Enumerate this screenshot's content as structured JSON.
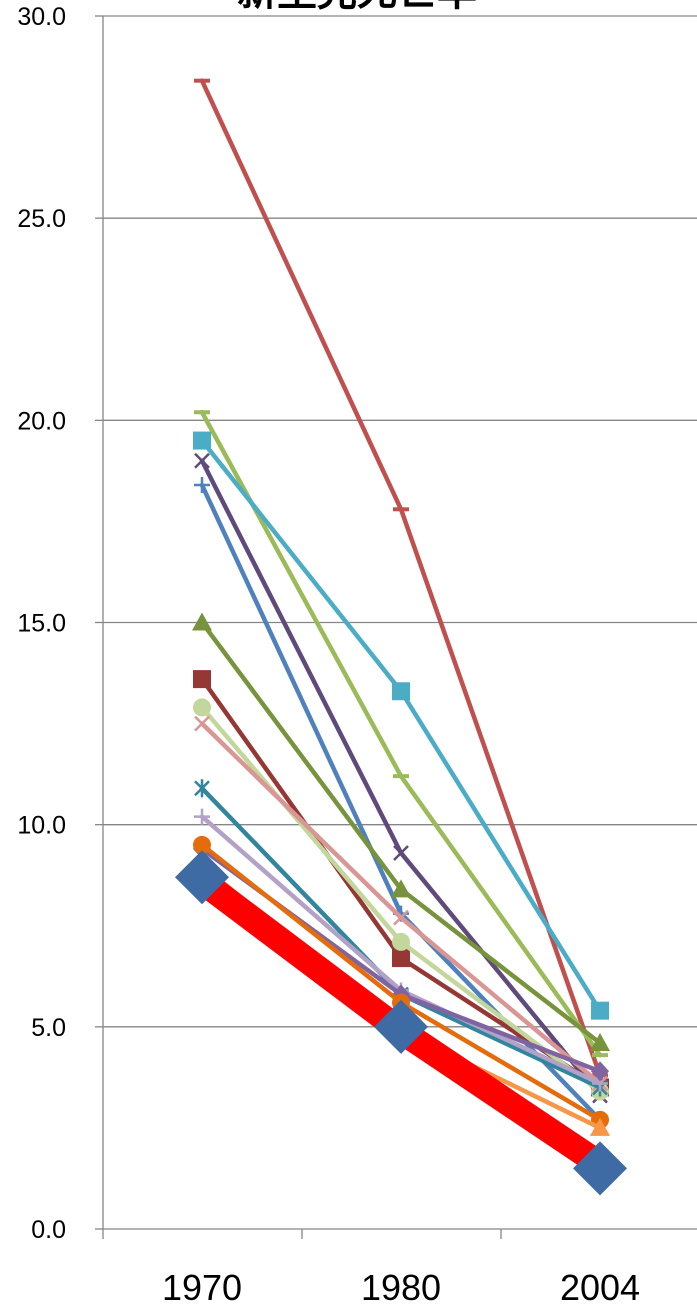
{
  "chart_data": {
    "type": "line",
    "title": "新生児死亡率",
    "xlabel": "",
    "ylabel": "",
    "categories": [
      "1970",
      "1980",
      "2004"
    ],
    "ylim": [
      0,
      30
    ],
    "yticks": [
      "0.0",
      "5.0",
      "10.0",
      "15.0",
      "20.0",
      "25.0",
      "30.0"
    ],
    "grid": true,
    "legend": "none",
    "series": [
      {
        "values": [
          28.4,
          17.8,
          3.8
        ],
        "color": "#C0504D",
        "marker": "dash"
      },
      {
        "values": [
          20.2,
          11.2,
          4.3
        ],
        "color": "#9BBB59",
        "marker": "dash"
      },
      {
        "values": [
          19.5,
          13.3,
          5.4
        ],
        "color": "#4BACC6",
        "marker": "square"
      },
      {
        "values": [
          19.0,
          9.3,
          3.3
        ],
        "color": "#604A7B",
        "marker": "x"
      },
      {
        "values": [
          18.4,
          7.8,
          2.7
        ],
        "color": "#4F81BD",
        "marker": "plus"
      },
      {
        "values": [
          15.0,
          8.4,
          4.6
        ],
        "color": "#77933C",
        "marker": "triangle"
      },
      {
        "values": [
          13.6,
          6.7,
          3.5
        ],
        "color": "#953735",
        "marker": "square"
      },
      {
        "values": [
          12.9,
          7.1,
          3.4
        ],
        "color": "#C3D69B",
        "marker": "circle"
      },
      {
        "values": [
          12.5,
          7.7,
          3.6
        ],
        "color": "#D99694",
        "marker": "x"
      },
      {
        "values": [
          10.9,
          5.8,
          3.5
        ],
        "color": "#31859C",
        "marker": "asterisk"
      },
      {
        "values": [
          10.2,
          5.9,
          3.6
        ],
        "color": "#B3A2C7",
        "marker": "plus"
      },
      {
        "values": [
          9.4,
          5.8,
          3.9
        ],
        "color": "#8064A2",
        "marker": "diamond"
      },
      {
        "values": [
          9.5,
          5.6,
          2.7
        ],
        "color": "#E46C0A",
        "marker": "circle"
      },
      {
        "values": [
          9.0,
          4.9,
          2.5
        ],
        "color": "#F79646",
        "marker": "triangle"
      },
      {
        "values": [
          8.6,
          4.9,
          1.6
        ],
        "color": "#FF0000",
        "marker": "none",
        "thick": true
      },
      {
        "values": [
          8.7,
          5.0,
          1.5
        ],
        "color": "#3E6BA3",
        "marker": "bigdiamond",
        "noline": true
      }
    ]
  }
}
